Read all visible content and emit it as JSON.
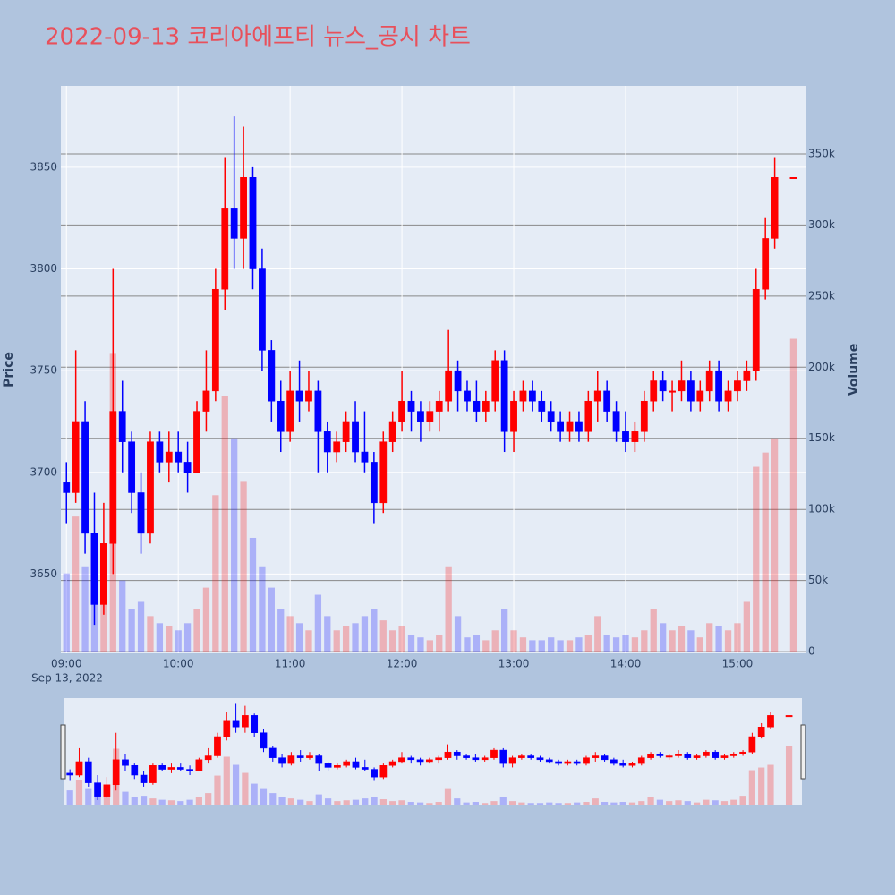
{
  "chart_data": {
    "type": "candlestick",
    "title": "2022-09-13 코리아에프티 뉴스_공시 차트",
    "x_date": "Sep 13, 2022",
    "x": [
      "09:00",
      "09:05",
      "09:10",
      "09:15",
      "09:20",
      "09:25",
      "09:30",
      "09:35",
      "09:40",
      "09:45",
      "09:50",
      "09:55",
      "10:00",
      "10:05",
      "10:10",
      "10:15",
      "10:20",
      "10:25",
      "10:30",
      "10:35",
      "10:40",
      "10:45",
      "10:50",
      "10:55",
      "11:00",
      "11:05",
      "11:10",
      "11:15",
      "11:20",
      "11:25",
      "11:30",
      "11:35",
      "11:40",
      "11:45",
      "11:50",
      "11:55",
      "12:00",
      "12:05",
      "12:10",
      "12:15",
      "12:20",
      "12:25",
      "12:30",
      "12:35",
      "12:40",
      "12:45",
      "12:50",
      "12:55",
      "13:00",
      "13:05",
      "13:10",
      "13:15",
      "13:20",
      "13:25",
      "13:30",
      "13:35",
      "13:40",
      "13:45",
      "13:50",
      "13:55",
      "14:00",
      "14:05",
      "14:10",
      "14:15",
      "14:20",
      "14:25",
      "14:30",
      "14:35",
      "14:40",
      "14:45",
      "14:50",
      "14:55",
      "15:00",
      "15:05",
      "15:10",
      "15:15",
      "15:20",
      "15:30"
    ],
    "open": [
      3695,
      3690,
      3725,
      3670,
      3635,
      3665,
      3730,
      3715,
      3690,
      3670,
      3715,
      3705,
      3710,
      3705,
      3700,
      3730,
      3740,
      3790,
      3830,
      3815,
      3845,
      3800,
      3760,
      3735,
      3720,
      3740,
      3735,
      3740,
      3720,
      3710,
      3715,
      3725,
      3710,
      3705,
      3685,
      3715,
      3725,
      3735,
      3730,
      3725,
      3730,
      3735,
      3750,
      3740,
      3735,
      3730,
      3735,
      3755,
      3720,
      3735,
      3740,
      3735,
      3730,
      3725,
      3720,
      3725,
      3720,
      3735,
      3740,
      3730,
      3720,
      3715,
      3720,
      3735,
      3745,
      3740,
      3740,
      3745,
      3735,
      3740,
      3750,
      3735,
      3740,
      3745,
      3750,
      3790,
      3815,
      3845
    ],
    "high": [
      3705,
      3760,
      3735,
      3690,
      3685,
      3800,
      3745,
      3720,
      3700,
      3720,
      3720,
      3720,
      3720,
      3715,
      3735,
      3760,
      3800,
      3855,
      3875,
      3870,
      3850,
      3810,
      3765,
      3745,
      3750,
      3755,
      3750,
      3745,
      3725,
      3720,
      3730,
      3735,
      3730,
      3710,
      3720,
      3730,
      3750,
      3740,
      3735,
      3735,
      3740,
      3770,
      3755,
      3745,
      3745,
      3740,
      3760,
      3760,
      3740,
      3745,
      3745,
      3740,
      3735,
      3730,
      3730,
      3730,
      3740,
      3750,
      3745,
      3735,
      3730,
      3725,
      3740,
      3750,
      3750,
      3745,
      3755,
      3750,
      3745,
      3755,
      3755,
      3745,
      3750,
      3755,
      3800,
      3825,
      3855,
      3845
    ],
    "low": [
      3675,
      3685,
      3660,
      3625,
      3630,
      3650,
      3700,
      3680,
      3660,
      3665,
      3700,
      3695,
      3700,
      3690,
      3700,
      3720,
      3735,
      3780,
      3800,
      3800,
      3790,
      3750,
      3725,
      3710,
      3715,
      3725,
      3730,
      3700,
      3700,
      3705,
      3710,
      3705,
      3700,
      3675,
      3680,
      3710,
      3720,
      3720,
      3715,
      3720,
      3720,
      3730,
      3730,
      3730,
      3725,
      3725,
      3730,
      3710,
      3710,
      3730,
      3730,
      3725,
      3720,
      3715,
      3715,
      3715,
      3715,
      3725,
      3725,
      3715,
      3710,
      3710,
      3715,
      3730,
      3735,
      3730,
      3735,
      3730,
      3730,
      3735,
      3730,
      3730,
      3735,
      3740,
      3745,
      3785,
      3810,
      3845
    ],
    "close": [
      3690,
      3725,
      3670,
      3635,
      3665,
      3730,
      3715,
      3690,
      3670,
      3715,
      3705,
      3710,
      3705,
      3700,
      3730,
      3740,
      3790,
      3830,
      3815,
      3845,
      3800,
      3760,
      3735,
      3720,
      3740,
      3735,
      3740,
      3720,
      3710,
      3715,
      3725,
      3710,
      3705,
      3685,
      3715,
      3725,
      3735,
      3730,
      3725,
      3730,
      3735,
      3750,
      3740,
      3735,
      3730,
      3735,
      3755,
      3720,
      3735,
      3740,
      3735,
      3730,
      3725,
      3720,
      3725,
      3720,
      3735,
      3740,
      3730,
      3720,
      3715,
      3720,
      3735,
      3745,
      3740,
      3740,
      3745,
      3735,
      3740,
      3750,
      3735,
      3740,
      3745,
      3750,
      3790,
      3815,
      3845,
      3845
    ],
    "volume": [
      55000,
      95000,
      60000,
      40000,
      45000,
      210000,
      50000,
      30000,
      35000,
      25000,
      20000,
      18000,
      15000,
      20000,
      30000,
      45000,
      110000,
      180000,
      150000,
      120000,
      80000,
      60000,
      45000,
      30000,
      25000,
      20000,
      15000,
      40000,
      25000,
      15000,
      18000,
      20000,
      25000,
      30000,
      22000,
      15000,
      18000,
      12000,
      10000,
      8000,
      12000,
      60000,
      25000,
      10000,
      12000,
      8000,
      15000,
      30000,
      15000,
      10000,
      8000,
      8000,
      10000,
      8000,
      8000,
      10000,
      12000,
      25000,
      12000,
      10000,
      12000,
      10000,
      15000,
      30000,
      20000,
      15000,
      18000,
      15000,
      10000,
      20000,
      18000,
      15000,
      20000,
      35000,
      130000,
      140000,
      150000,
      220000
    ],
    "increasing_color": "#ff0000",
    "decreasing_color": "#0000ff",
    "xlim": [
      "08:57",
      "15:37"
    ],
    "xticks": [
      "09:00",
      "10:00",
      "11:00",
      "12:00",
      "13:00",
      "14:00",
      "15:00"
    ],
    "ylabel": "Price",
    "ylim": [
      3611,
      3890
    ],
    "yticks": [
      3650,
      3700,
      3750,
      3800,
      3850
    ],
    "y2label": "Volume",
    "y2lim": [
      -1200,
      397800
    ],
    "y2ticks": [
      0,
      {
        "value": 50000,
        "label": "50k"
      },
      {
        "value": 100000,
        "label": "100k"
      },
      {
        "value": 150000,
        "label": "150k"
      },
      {
        "value": 200000,
        "label": "200k"
      },
      {
        "value": 250000,
        "label": "250k"
      },
      {
        "value": 300000,
        "label": "300k"
      },
      {
        "value": 350000,
        "label": "350k"
      }
    ],
    "grid": true,
    "rangeslider": true
  }
}
